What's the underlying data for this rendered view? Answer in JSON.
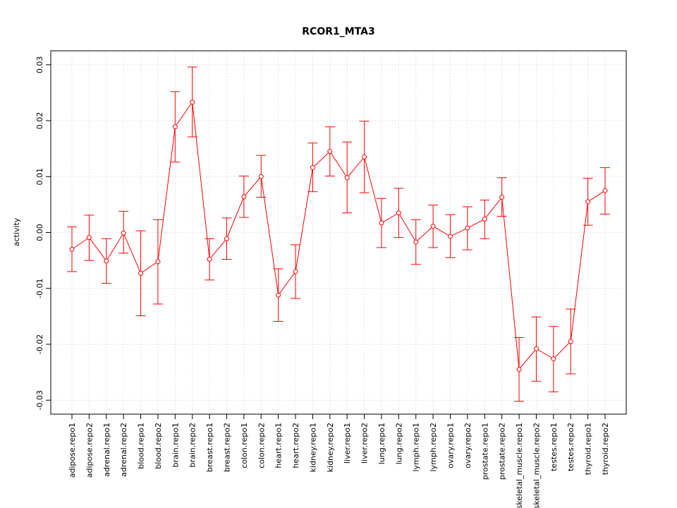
{
  "chart_data": {
    "type": "line",
    "title": "RCOR1_MTA3",
    "xlabel": "",
    "ylabel": "activity",
    "ylim": [
      -0.0325,
      0.0325
    ],
    "grid": true,
    "color": "#ff0000",
    "yticks": [
      -0.03,
      -0.02,
      -0.01,
      0.0,
      0.01,
      0.02,
      0.03
    ],
    "ytick_labels": [
      "-0.03",
      "-0.02",
      "-0.01",
      "0.00",
      "0.01",
      "0.02",
      "0.03"
    ],
    "categories": [
      "adipose.repo1",
      "adipose.repo2",
      "adrenal.repo1",
      "adrenal.repo2",
      "blood.repo1",
      "blood.repo2",
      "brain.repo1",
      "brain.repo2",
      "breast.repo1",
      "breast.repo2",
      "colon.repo1",
      "colon.repo2",
      "heart.repo1",
      "heart.repo2",
      "kidney.repo1",
      "kidney.repo2",
      "liver.repo1",
      "liver.repo2",
      "lung.repo1",
      "lung.repo2",
      "lymph.repo1",
      "lymph.repo2",
      "ovary.repo1",
      "ovary.repo2",
      "prostate.repo1",
      "prostate.repo2",
      "skeletal_muscle.repo1",
      "skeletal_muscle.repo2",
      "testes.repo1",
      "testes.repo2",
      "thyroid.repo1",
      "thyroid.repo2"
    ],
    "values": [
      -0.003,
      -0.0009,
      -0.0051,
      -0.0001,
      -0.0073,
      -0.0052,
      0.0189,
      0.0233,
      -0.0048,
      -0.0011,
      0.0064,
      0.01,
      -0.0112,
      -0.007,
      0.0116,
      0.0145,
      0.0098,
      0.0135,
      0.0017,
      0.0035,
      -0.0017,
      0.0011,
      -0.0007,
      0.0008,
      0.0024,
      0.0063,
      -0.0245,
      -0.0208,
      -0.0226,
      -0.0195,
      0.0055,
      0.0075
    ],
    "upper": [
      0.001,
      0.0031,
      -0.0011,
      0.0038,
      0.0003,
      0.0023,
      0.0252,
      0.0296,
      -0.0011,
      0.0026,
      0.0101,
      0.0138,
      -0.0065,
      -0.0022,
      0.016,
      0.0189,
      0.0162,
      0.0199,
      0.0061,
      0.0079,
      0.0023,
      0.0049,
      0.0032,
      0.0046,
      0.0058,
      0.0098,
      -0.0188,
      -0.0151,
      -0.0168,
      -0.0137,
      0.0097,
      0.0116
    ],
    "lower": [
      -0.007,
      -0.005,
      -0.0091,
      -0.0037,
      -0.0149,
      -0.0128,
      0.0126,
      0.0171,
      -0.0085,
      -0.0048,
      0.0027,
      0.0063,
      -0.0159,
      -0.0118,
      0.0073,
      0.0101,
      0.0035,
      0.0071,
      -0.0027,
      -0.0009,
      -0.0057,
      -0.0027,
      -0.0045,
      -0.0031,
      -0.0011,
      0.0029,
      -0.0302,
      -0.0266,
      -0.0285,
      -0.0253,
      0.0013,
      0.0033
    ]
  }
}
